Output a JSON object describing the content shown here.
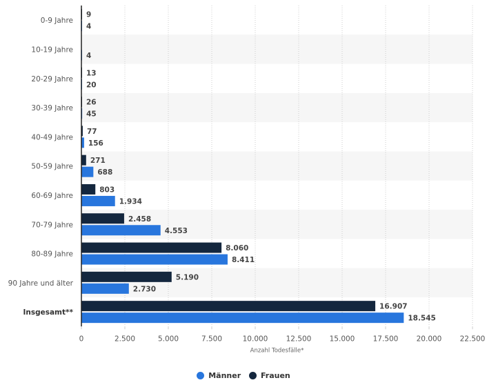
{
  "chart_data": {
    "type": "bar",
    "orientation": "horizontal",
    "categories": [
      "0-9 Jahre",
      "10-19 Jahre",
      "20-29 Jahre",
      "30-39 Jahre",
      "40-49 Jahre",
      "50-59 Jahre",
      "60-69 Jahre",
      "70-79 Jahre",
      "80-89 Jahre",
      "90 Jahre und älter",
      "Insgesamt**"
    ],
    "series": [
      {
        "name": "Frauen",
        "color": "#14273e",
        "values": [
          9,
          null,
          13,
          26,
          77,
          271,
          803,
          2458,
          8060,
          5190,
          16907
        ],
        "labels": [
          "9",
          "",
          "13",
          "26",
          "77",
          "271",
          "803",
          "2.458",
          "8.060",
          "5.190",
          "16.907"
        ]
      },
      {
        "name": "Männer",
        "color": "#2876dd",
        "values": [
          4,
          4,
          20,
          45,
          156,
          688,
          1934,
          4553,
          8411,
          2730,
          18545
        ],
        "labels": [
          "4",
          "4",
          "20",
          "45",
          "156",
          "688",
          "1.934",
          "4.553",
          "8.411",
          "2.730",
          "18.545"
        ]
      }
    ],
    "xlabel": "Anzahl Todesfälle*",
    "ylabel": "",
    "xlim": [
      0,
      22500
    ],
    "ticks": [
      0,
      2500,
      5000,
      7500,
      10000,
      12500,
      15000,
      17500,
      20000,
      22500
    ],
    "tick_labels": [
      "0",
      "2.500",
      "5.000",
      "7.500",
      "10.000",
      "12.500",
      "15.000",
      "17.500",
      "20.000",
      "22.500"
    ],
    "grid": true,
    "legend_position": "bottom-center",
    "legend": [
      {
        "name": "Männer",
        "color": "#2876dd"
      },
      {
        "name": "Frauen",
        "color": "#14273e"
      }
    ]
  }
}
